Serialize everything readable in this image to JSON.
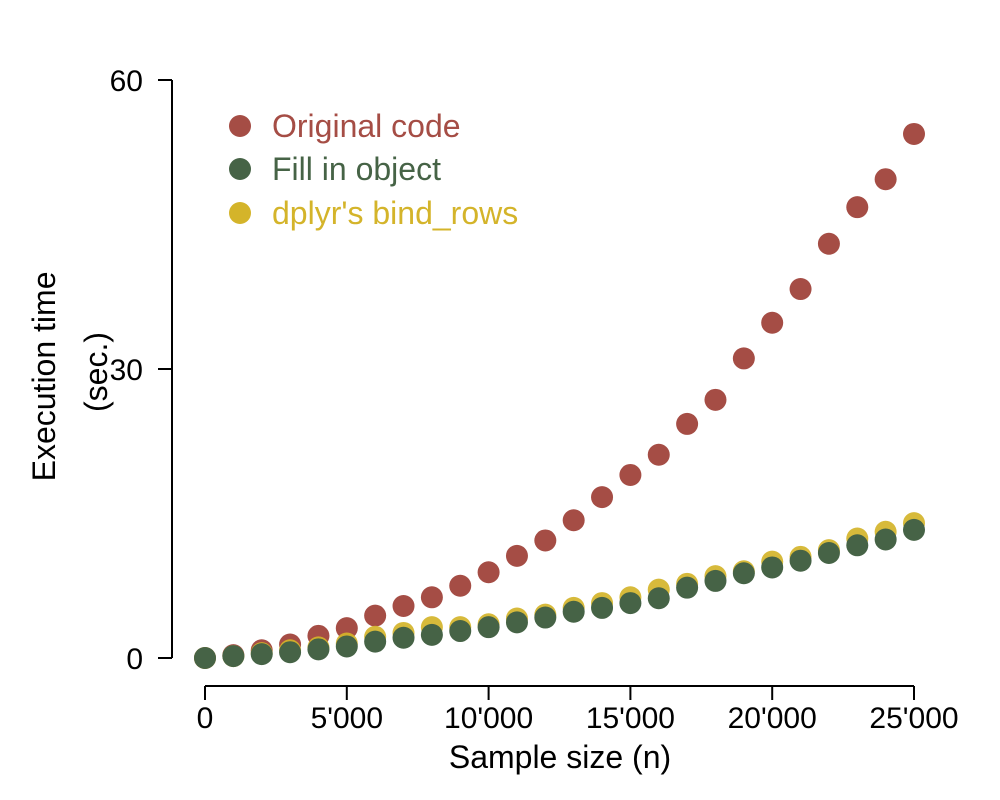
{
  "chart_data": {
    "type": "scatter",
    "xlabel": "Sample size (n)",
    "ylabel_lines": [
      "Execution time",
      "(sec.)"
    ],
    "xlim": [
      0,
      25000
    ],
    "ylim": [
      0,
      60
    ],
    "xticks": [
      0,
      5000,
      10000,
      15000,
      20000,
      25000
    ],
    "xtick_labels": [
      "0",
      "5'000",
      "10'000",
      "15'000",
      "20'000",
      "25'000"
    ],
    "yticks": [
      0,
      30,
      60
    ],
    "ytick_labels": [
      "0",
      "30",
      "60"
    ],
    "grid": false,
    "legend_position": "top-left",
    "x": [
      0,
      1000,
      2000,
      3000,
      4000,
      5000,
      6000,
      7000,
      8000,
      9000,
      10000,
      11000,
      12000,
      13000,
      14000,
      15000,
      16000,
      17000,
      18000,
      19000,
      20000,
      21000,
      22000,
      23000,
      24000,
      25000
    ],
    "series": [
      {
        "name": "Original code",
        "color": "#a54d45",
        "values": [
          0.0,
          0.3,
          0.8,
          1.4,
          2.3,
          3.1,
          4.4,
          5.4,
          6.3,
          7.5,
          8.9,
          10.6,
          12.2,
          14.3,
          16.7,
          19.0,
          21.1,
          24.3,
          26.8,
          31.1,
          34.8,
          38.3,
          43.0,
          46.8,
          49.7,
          54.4
        ]
      },
      {
        "name": "Fill in object",
        "color": "#466346",
        "values": [
          0.0,
          0.2,
          0.4,
          0.6,
          0.9,
          1.2,
          1.7,
          2.1,
          2.4,
          2.8,
          3.2,
          3.7,
          4.2,
          4.8,
          5.2,
          5.7,
          6.2,
          7.3,
          8.0,
          8.8,
          9.4,
          10.1,
          10.9,
          11.7,
          12.3,
          13.3
        ]
      },
      {
        "name": "dplyr's bind_rows",
        "color": "#d4b42a",
        "values": [
          0.0,
          0.2,
          0.5,
          0.8,
          1.1,
          1.5,
          2.2,
          2.6,
          3.2,
          3.2,
          3.5,
          4.1,
          4.5,
          5.2,
          5.7,
          6.3,
          7.1,
          7.7,
          8.5,
          9.0,
          10.0,
          10.5,
          11.2,
          12.4,
          13.1,
          14.0
        ]
      }
    ]
  }
}
